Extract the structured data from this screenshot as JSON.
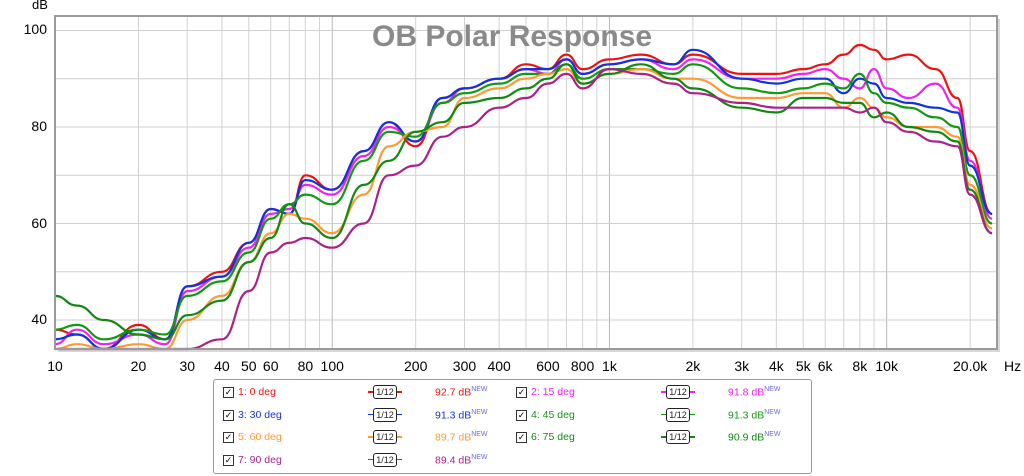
{
  "chart_data": {
    "type": "line",
    "title": "OB Polar Response",
    "ylabel": "dB",
    "xlabel": "Hz",
    "x_scale": "log",
    "xlim": [
      10,
      25000
    ],
    "ylim": [
      34,
      103
    ],
    "y_ticks": [
      40,
      60,
      80,
      100
    ],
    "x_tick_labels": [
      {
        "v": 10,
        "t": "10"
      },
      {
        "v": 20,
        "t": "20"
      },
      {
        "v": 30,
        "t": "30"
      },
      {
        "v": 40,
        "t": "40"
      },
      {
        "v": 50,
        "t": "50"
      },
      {
        "v": 60,
        "t": "60"
      },
      {
        "v": 80,
        "t": "80"
      },
      {
        "v": 100,
        "t": "100"
      },
      {
        "v": 200,
        "t": "200"
      },
      {
        "v": 300,
        "t": "300"
      },
      {
        "v": 400,
        "t": "400"
      },
      {
        "v": 600,
        "t": "600"
      },
      {
        "v": 800,
        "t": "800"
      },
      {
        "v": 1000,
        "t": "1k"
      },
      {
        "v": 2000,
        "t": "2k"
      },
      {
        "v": 3000,
        "t": "3k"
      },
      {
        "v": 4000,
        "t": "4k"
      },
      {
        "v": 5000,
        "t": "5k"
      },
      {
        "v": 6000,
        "t": "6k"
      },
      {
        "v": 8000,
        "t": "8k"
      },
      {
        "v": 10000,
        "t": "10k"
      },
      {
        "v": 20000,
        "t": "20.0k"
      }
    ],
    "grid": true,
    "legend_position": "bottom",
    "x": [
      10,
      12,
      15,
      20,
      25,
      30,
      40,
      50,
      60,
      70,
      80,
      100,
      130,
      160,
      200,
      250,
      300,
      400,
      500,
      600,
      700,
      800,
      1000,
      1300,
      1700,
      2000,
      3000,
      4000,
      5000,
      6000,
      7000,
      8000,
      9000,
      10000,
      12000,
      15000,
      18000,
      20000,
      24000
    ],
    "series": [
      {
        "name": "1: 0 deg",
        "color": "#ee1111",
        "level": "92.7 dB",
        "values": [
          38,
          37,
          34,
          39,
          36,
          47,
          50,
          56,
          63,
          62,
          70,
          67,
          75,
          81,
          76,
          86,
          88,
          90,
          93,
          92,
          95,
          92,
          94,
          95,
          93,
          95,
          91,
          91,
          92,
          93,
          95,
          97,
          96,
          94,
          95,
          92,
          86,
          75,
          62
        ]
      },
      {
        "name": "2: 15 deg",
        "color": "#ee22ee",
        "level": "91.8 dB",
        "values": [
          35,
          38,
          35,
          37,
          35,
          46,
          49,
          55,
          62,
          63,
          68,
          66,
          74,
          80,
          77,
          85,
          88,
          90,
          92,
          91,
          94,
          91,
          93,
          94,
          92,
          94,
          90,
          90,
          91,
          92,
          90,
          88,
          92,
          88,
          86,
          89,
          84,
          73,
          61
        ]
      },
      {
        "name": "3: 30 deg",
        "color": "#1133dd",
        "level": "91.3 dB",
        "values": [
          36,
          37,
          34,
          38,
          36,
          47,
          49,
          56,
          63,
          62,
          69,
          67,
          75,
          81,
          77,
          86,
          88,
          90,
          92,
          92,
          94,
          91,
          93,
          94,
          93,
          96,
          90,
          89,
          90,
          90,
          87,
          90,
          89,
          86,
          85,
          84,
          83,
          72,
          62
        ]
      },
      {
        "name": "4: 45 deg",
        "color": "#119911",
        "level": "91.3 dB",
        "values": [
          38,
          39,
          36,
          38,
          37,
          45,
          48,
          54,
          61,
          64,
          66,
          64,
          73,
          79,
          78,
          85,
          87,
          89,
          91,
          91,
          93,
          90,
          92,
          92,
          91,
          93,
          88,
          87,
          88,
          89,
          88,
          91,
          87,
          85,
          84,
          82,
          80,
          70,
          60
        ]
      },
      {
        "name": "5: 60 deg",
        "color": "#ff9933",
        "level": "89.7 dB",
        "values": [
          33,
          35,
          34,
          35,
          33,
          40,
          45,
          52,
          58,
          62,
          61,
          58,
          66,
          76,
          79,
          80,
          86,
          88,
          90,
          91,
          92,
          89,
          91,
          92,
          90,
          90,
          86,
          86,
          87,
          87,
          84,
          86,
          84,
          82,
          80,
          80,
          78,
          68,
          59
        ]
      },
      {
        "name": "6: 75 deg",
        "color": "#118811",
        "level": "90.9 dB",
        "values": [
          45,
          43,
          40,
          37,
          36,
          41,
          44,
          52,
          57,
          64,
          60,
          57,
          68,
          73,
          79,
          81,
          85,
          86,
          88,
          90,
          93,
          89,
          91,
          93,
          90,
          88,
          84,
          83,
          86,
          86,
          85,
          85,
          82,
          83,
          80,
          79,
          77,
          67,
          58
        ]
      },
      {
        "name": "7: 90 deg",
        "color": "#aa2288",
        "level": "89.4 dB",
        "values": [
          33,
          34,
          33,
          32,
          33,
          34,
          36,
          46,
          54,
          56,
          57,
          55,
          60,
          70,
          72,
          78,
          80,
          84,
          86,
          89,
          91,
          88,
          92,
          91,
          89,
          87,
          85,
          84,
          84,
          84,
          84,
          83,
          84,
          81,
          79,
          77,
          76,
          66,
          58
        ]
      }
    ]
  },
  "legend": [
    {
      "name": "1: 0 deg",
      "color": "#ee1111",
      "smoothing": "1/12",
      "level": "92.7 dB",
      "tag": "NEW",
      "checked": true
    },
    {
      "name": "2: 15 deg",
      "color": "#ee22ee",
      "smoothing": "1/12",
      "level": "91.8 dB",
      "tag": "NEW",
      "checked": true
    },
    {
      "name": "3: 30 deg",
      "color": "#1133dd",
      "smoothing": "1/12",
      "level": "91.3 dB",
      "tag": "NEW",
      "checked": true
    },
    {
      "name": "4: 45 deg",
      "color": "#119911",
      "smoothing": "1/12",
      "level": "91.3 dB",
      "tag": "NEW",
      "checked": true
    },
    {
      "name": "5: 60 deg",
      "color": "#ff9933",
      "smoothing": "1/12",
      "level": "89.7 dB",
      "tag": "NEW",
      "checked": true
    },
    {
      "name": "6: 75 deg",
      "color": "#118811",
      "smoothing": "1/12",
      "level": "90.9 dB",
      "tag": "NEW",
      "checked": true
    },
    {
      "name": "7: 90 deg",
      "color": "#aa2288",
      "smoothing": "1/12",
      "level": "89.4 dB",
      "tag": "NEW",
      "checked": true
    }
  ]
}
